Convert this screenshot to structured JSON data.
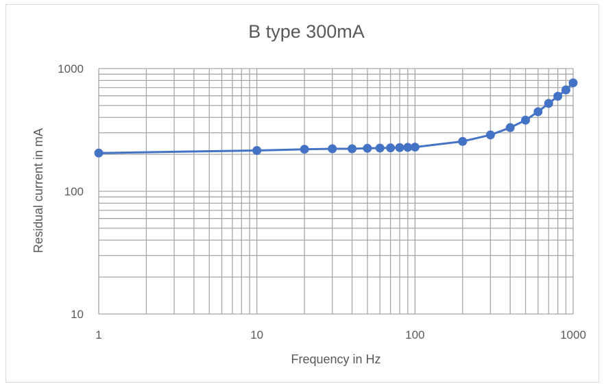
{
  "chart_data": {
    "type": "line",
    "title": "B type 300mA",
    "xlabel": "Frequency in Hz",
    "ylabel": "Residual current in mA",
    "xscale": "log",
    "yscale": "log",
    "xlim": [
      1,
      1000
    ],
    "ylim": [
      10,
      1000
    ],
    "xticks": [
      "1",
      "10",
      "100",
      "1000"
    ],
    "yticks": [
      "10",
      "100",
      "1000"
    ],
    "grid": true,
    "legend": "none",
    "series": [
      {
        "color": "#4472c4",
        "marker": "circle",
        "x": [
          1,
          10,
          20,
          30,
          40,
          50,
          60,
          70,
          80,
          90,
          100,
          200,
          300,
          400,
          500,
          600,
          700,
          800,
          900,
          1000
        ],
        "y": [
          205,
          215,
          220,
          222,
          222,
          224,
          225,
          226,
          227,
          228,
          229,
          255,
          288,
          330,
          380,
          445,
          520,
          595,
          670,
          765
        ]
      }
    ]
  }
}
